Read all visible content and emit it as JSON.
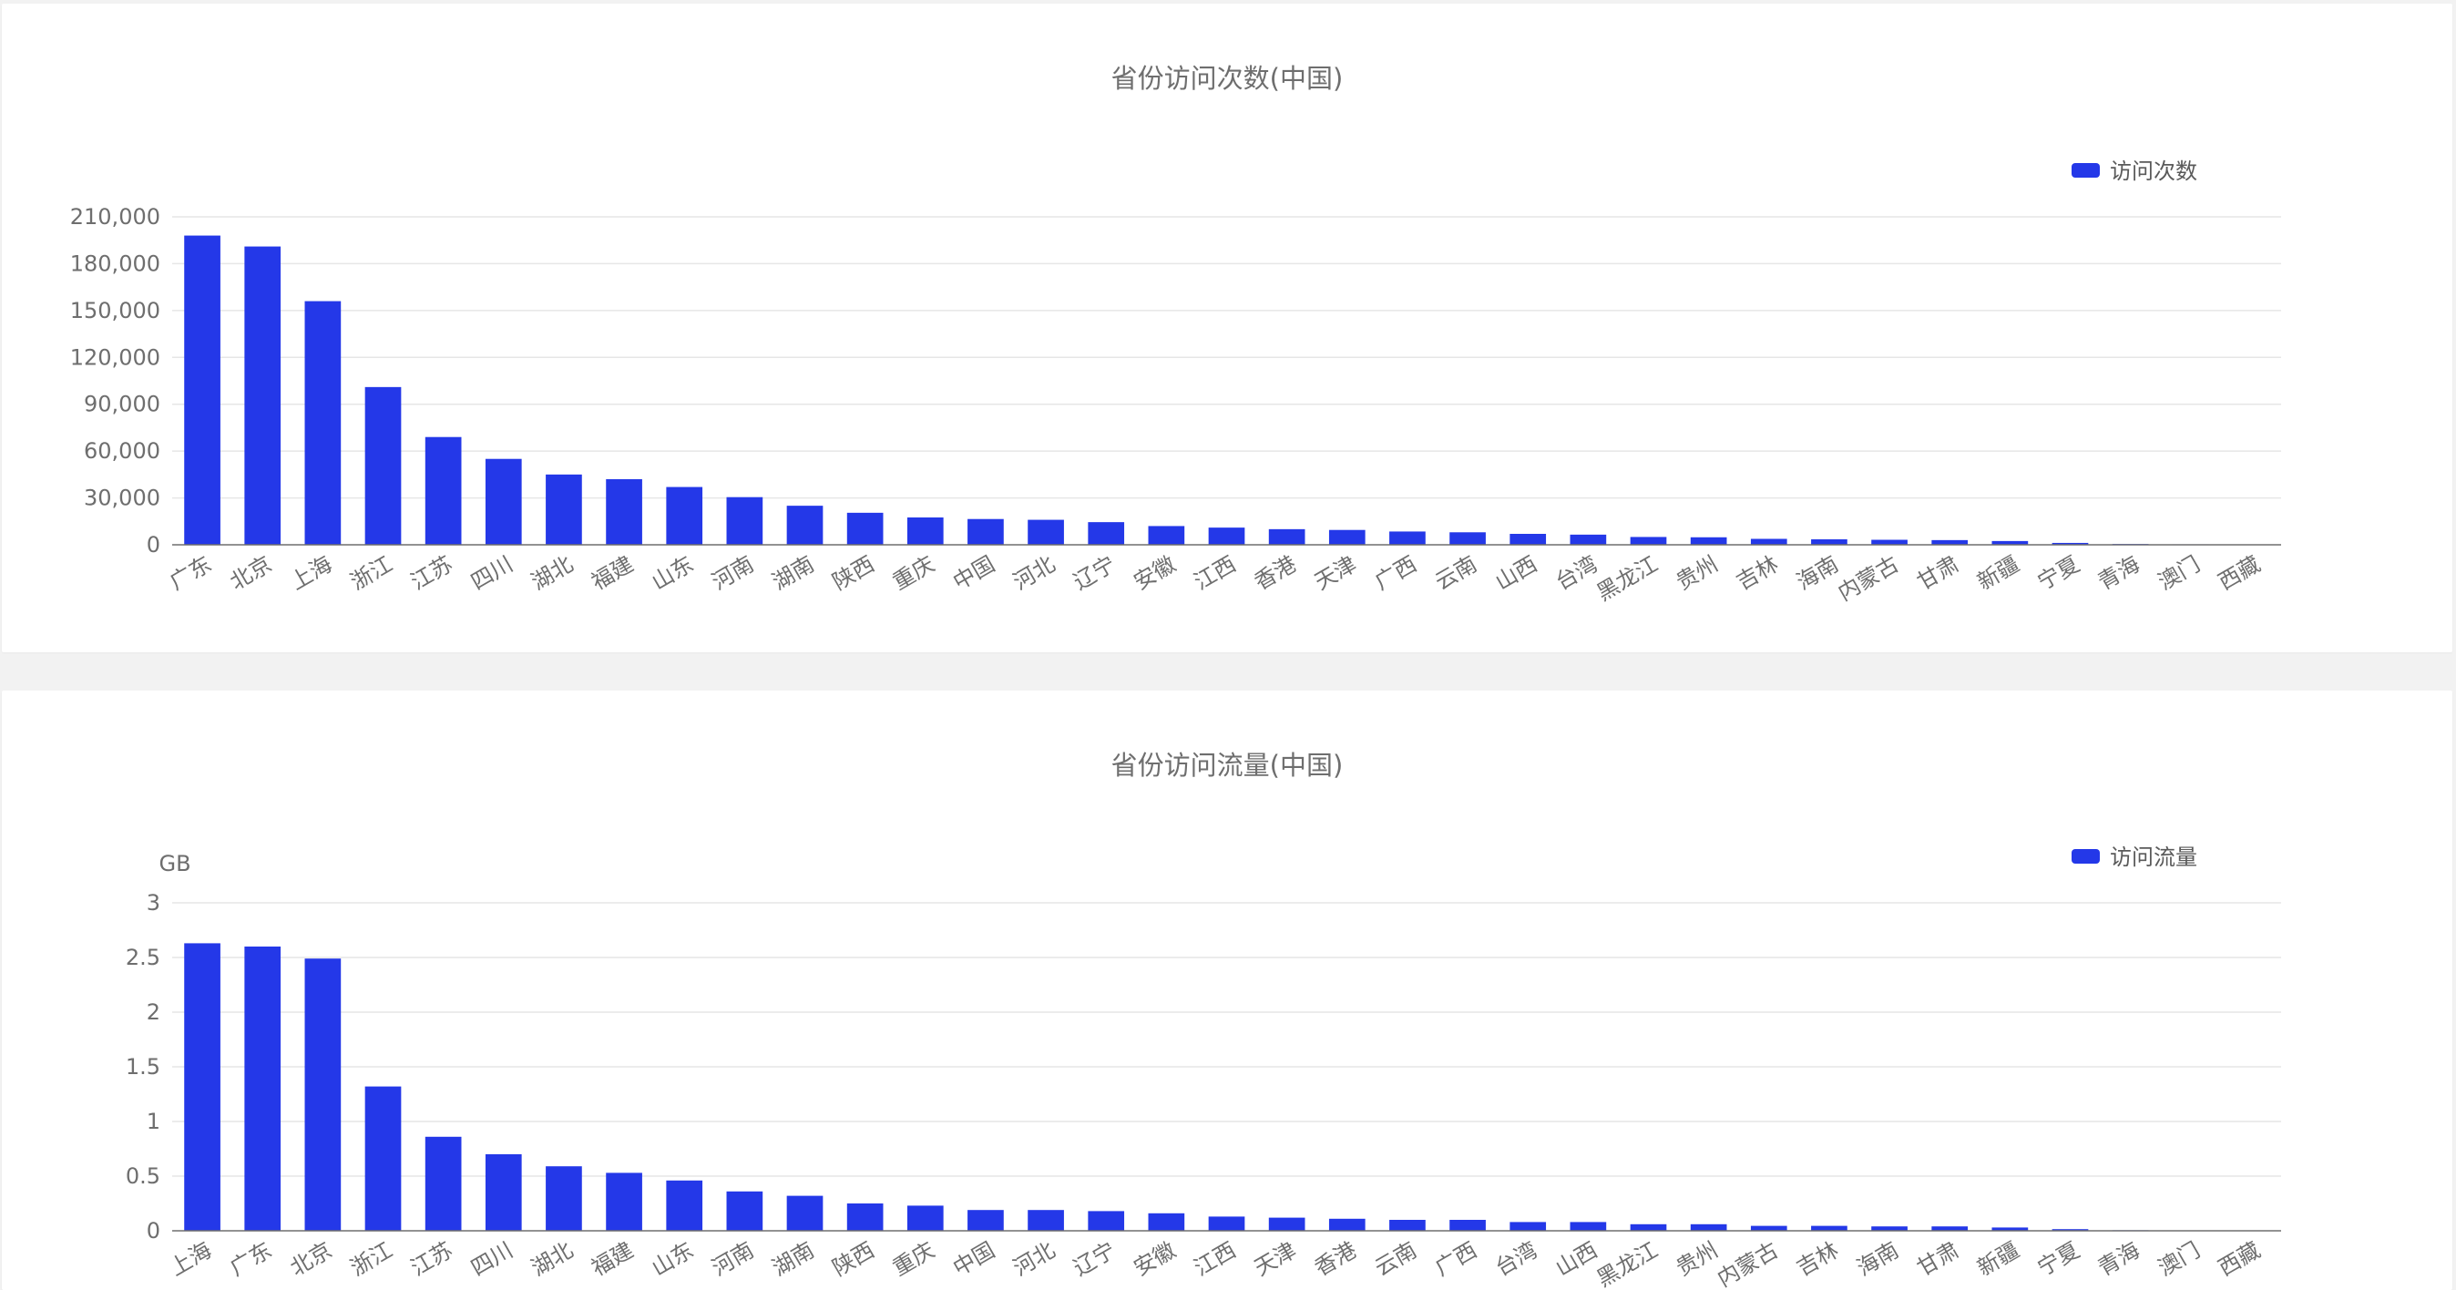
{
  "chart_data": [
    {
      "type": "bar",
      "title": "省份访问次数(中国)",
      "ylabel": "",
      "ylim": [
        0,
        210000
      ],
      "yticks": [
        0,
        30000,
        60000,
        90000,
        120000,
        150000,
        180000,
        210000
      ],
      "ytick_labels": [
        "0",
        "30,000",
        "60,000",
        "90,000",
        "120,000",
        "150,000",
        "180,000",
        "210,000"
      ],
      "categories": [
        "广东",
        "北京",
        "上海",
        "浙江",
        "江苏",
        "四川",
        "湖北",
        "福建",
        "山东",
        "河南",
        "湖南",
        "陕西",
        "重庆",
        "中国",
        "河北",
        "辽宁",
        "安徽",
        "江西",
        "香港",
        "天津",
        "广西",
        "云南",
        "山西",
        "台湾",
        "黑龙江",
        "贵州",
        "吉林",
        "海南",
        "内蒙古",
        "甘肃",
        "新疆",
        "宁夏",
        "青海",
        "澳门",
        "西藏"
      ],
      "series": [
        {
          "name": "访问次数",
          "color": "#2438e8",
          "values": [
            198000,
            191000,
            156000,
            101000,
            69000,
            55000,
            45000,
            42000,
            37000,
            30500,
            25000,
            20500,
            17500,
            16500,
            16000,
            14500,
            12000,
            11000,
            10000,
            9500,
            8500,
            8000,
            7000,
            6500,
            5000,
            4800,
            3800,
            3500,
            3200,
            3000,
            2400,
            1200,
            500,
            300,
            200
          ]
        }
      ],
      "legend": "top-right",
      "grid": true
    },
    {
      "type": "bar",
      "title": "省份访问流量(中国)",
      "ylabel": "GB",
      "ylim": [
        0,
        3
      ],
      "yticks": [
        0,
        0.5,
        1,
        1.5,
        2,
        2.5,
        3
      ],
      "ytick_labels": [
        "0",
        "0.5",
        "1",
        "1.5",
        "2",
        "2.5",
        "3"
      ],
      "categories": [
        "上海",
        "广东",
        "北京",
        "浙江",
        "江苏",
        "四川",
        "湖北",
        "福建",
        "山东",
        "河南",
        "湖南",
        "陕西",
        "重庆",
        "中国",
        "河北",
        "辽宁",
        "安徽",
        "江西",
        "天津",
        "香港",
        "云南",
        "广西",
        "台湾",
        "山西",
        "黑龙江",
        "贵州",
        "内蒙古",
        "吉林",
        "海南",
        "甘肃",
        "新疆",
        "宁夏",
        "青海",
        "澳门",
        "西藏"
      ],
      "series": [
        {
          "name": "访问流量",
          "color": "#2438e8",
          "values": [
            2.63,
            2.6,
            2.49,
            1.32,
            0.86,
            0.7,
            0.59,
            0.53,
            0.46,
            0.36,
            0.32,
            0.25,
            0.23,
            0.19,
            0.19,
            0.18,
            0.16,
            0.13,
            0.12,
            0.11,
            0.1,
            0.1,
            0.08,
            0.08,
            0.06,
            0.06,
            0.045,
            0.045,
            0.04,
            0.04,
            0.03,
            0.015,
            0.005,
            0.003,
            0.002
          ]
        }
      ],
      "legend": "top-right",
      "grid": true
    }
  ]
}
